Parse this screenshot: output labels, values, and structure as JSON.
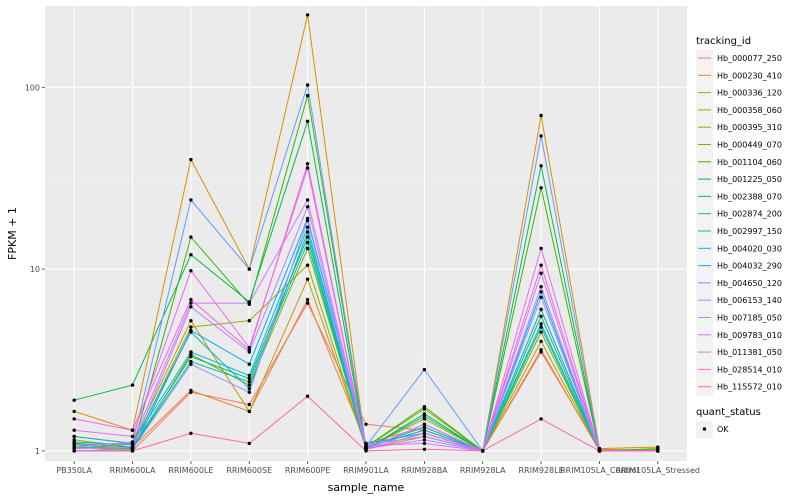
{
  "chart_data": {
    "type": "line",
    "xlabel": "sample_name",
    "ylabel": "FPKM + 1",
    "y_scale": "log10",
    "ylim": [
      0.88,
      280
    ],
    "y_ticks": [
      1,
      10,
      100
    ],
    "y_tick_labels": [
      "1",
      "10",
      "100"
    ],
    "grid": true,
    "legend_position": "right",
    "legend_title": "tracking_id",
    "shape_legend": {
      "title": "quant_status",
      "items": [
        {
          "label": "OK"
        }
      ]
    },
    "categories": [
      "PB350LA",
      "RRIM600LA",
      "RRIM600LE",
      "RRIM600SE",
      "RRIM600PE",
      "RRIM901LA",
      "RRIM928BA",
      "RRIM928LA",
      "RRIM928LE",
      "RRIM105LA_Control",
      "RRIM105LA_Stressed"
    ],
    "series": [
      {
        "name": "Hb_000077_250",
        "color": "#F8766D",
        "values": [
          1.05,
          1.0,
          2.1,
          1.8,
          6.5,
          1.4,
          1.3,
          1.0,
          3.5,
          1.02,
          1.0
        ]
      },
      {
        "name": "Hb_000230_410",
        "color": "#EA8331",
        "values": [
          1.1,
          1.05,
          2.15,
          1.65,
          6.8,
          1.1,
          1.35,
          1.0,
          3.6,
          1.0,
          1.02
        ]
      },
      {
        "name": "Hb_000336_120",
        "color": "#D89000",
        "values": [
          1.65,
          1.3,
          40.0,
          10.0,
          250.0,
          1.02,
          1.2,
          1.0,
          70.0,
          1.03,
          1.05
        ]
      },
      {
        "name": "Hb_000358_060",
        "color": "#C09B00",
        "values": [
          1.2,
          1.1,
          5.2,
          1.65,
          8.8,
          1.05,
          1.3,
          1.0,
          4.0,
          1.0,
          1.0
        ]
      },
      {
        "name": "Hb_000395_310",
        "color": "#A3A500",
        "values": [
          1.15,
          1.05,
          4.8,
          5.2,
          10.5,
          1.03,
          1.5,
          1.0,
          6.0,
          1.01,
          1.02
        ]
      },
      {
        "name": "Hb_000449_070",
        "color": "#7CAE00",
        "values": [
          1.05,
          1.02,
          3.4,
          2.3,
          13.0,
          1.05,
          1.7,
          1.0,
          4.5,
          1.0,
          1.0
        ]
      },
      {
        "name": "Hb_001104_060",
        "color": "#39B600",
        "values": [
          1.08,
          1.03,
          15.0,
          6.4,
          90.0,
          1.05,
          1.75,
          1.0,
          28.0,
          1.0,
          1.03
        ]
      },
      {
        "name": "Hb_001225_050",
        "color": "#00BB4E",
        "values": [
          1.9,
          2.3,
          12.0,
          6.6,
          65.0,
          1.02,
          1.6,
          1.0,
          37.0,
          1.0,
          1.0
        ]
      },
      {
        "name": "Hb_002388_070",
        "color": "#00BF7D",
        "values": [
          1.1,
          1.05,
          3.3,
          2.5,
          15.0,
          1.03,
          1.55,
          1.0,
          5.5,
          1.0,
          1.0
        ]
      },
      {
        "name": "Hb_002874_200",
        "color": "#00C1A3",
        "values": [
          1.05,
          1.04,
          3.1,
          2.4,
          14.0,
          1.02,
          1.4,
          1.0,
          4.8,
          1.0,
          1.0
        ]
      },
      {
        "name": "Hb_002997_150",
        "color": "#00BFC4",
        "values": [
          1.12,
          1.08,
          4.5,
          2.2,
          16.0,
          1.04,
          1.35,
          1.0,
          5.0,
          1.0,
          1.0
        ]
      },
      {
        "name": "Hb_004020_030",
        "color": "#00B8E5",
        "values": [
          1.2,
          1.1,
          3.5,
          2.6,
          17.0,
          1.04,
          1.3,
          1.0,
          6.0,
          1.0,
          1.0
        ]
      },
      {
        "name": "Hb_004032_290",
        "color": "#00ACFC",
        "values": [
          1.0,
          1.0,
          4.6,
          3.0,
          19.0,
          1.1,
          1.25,
          1.0,
          7.5,
          1.0,
          1.0
        ]
      },
      {
        "name": "Hb_004650_120",
        "color": "#619CFF",
        "values": [
          1.08,
          1.1,
          24.0,
          10.0,
          103.0,
          1.06,
          2.8,
          1.0,
          54.0,
          1.0,
          1.0
        ]
      },
      {
        "name": "Hb_006153_140",
        "color": "#9590FF",
        "values": [
          1.0,
          1.02,
          3.0,
          2.1,
          18.5,
          1.08,
          1.2,
          1.0,
          7.0,
          1.0,
          1.0
        ]
      },
      {
        "name": "Hb_007185_050",
        "color": "#B983FF",
        "values": [
          1.03,
          1.05,
          6.2,
          3.5,
          22.0,
          1.03,
          1.15,
          1.0,
          8.0,
          1.0,
          1.0
        ]
      },
      {
        "name": "Hb_009783_010",
        "color": "#D575FE",
        "values": [
          1.05,
          1.12,
          6.5,
          6.5,
          24.0,
          1.07,
          1.1,
          1.0,
          9.5,
          1.0,
          1.0
        ]
      },
      {
        "name": "Hb_011381_050",
        "color": "#E76BF3",
        "values": [
          1.3,
          1.2,
          9.8,
          3.7,
          36.0,
          1.02,
          1.4,
          1.0,
          13.0,
          1.0,
          1.0
        ]
      },
      {
        "name": "Hb_028514_010",
        "color": "#F564E3",
        "values": [
          1.5,
          1.3,
          6.8,
          3.6,
          38.0,
          1.02,
          1.25,
          1.0,
          10.5,
          1.0,
          1.0
        ]
      },
      {
        "name": "Hb_115572_010",
        "color": "#FF65AC",
        "values": [
          1.0,
          1.0,
          1.25,
          1.1,
          2.0,
          1.0,
          1.02,
          1.0,
          1.5,
          1.0,
          1.0
        ]
      }
    ]
  },
  "colors": {
    "panel_bg": "#EBEBEB",
    "grid_major": "#FFFFFF",
    "point": "#000000"
  }
}
